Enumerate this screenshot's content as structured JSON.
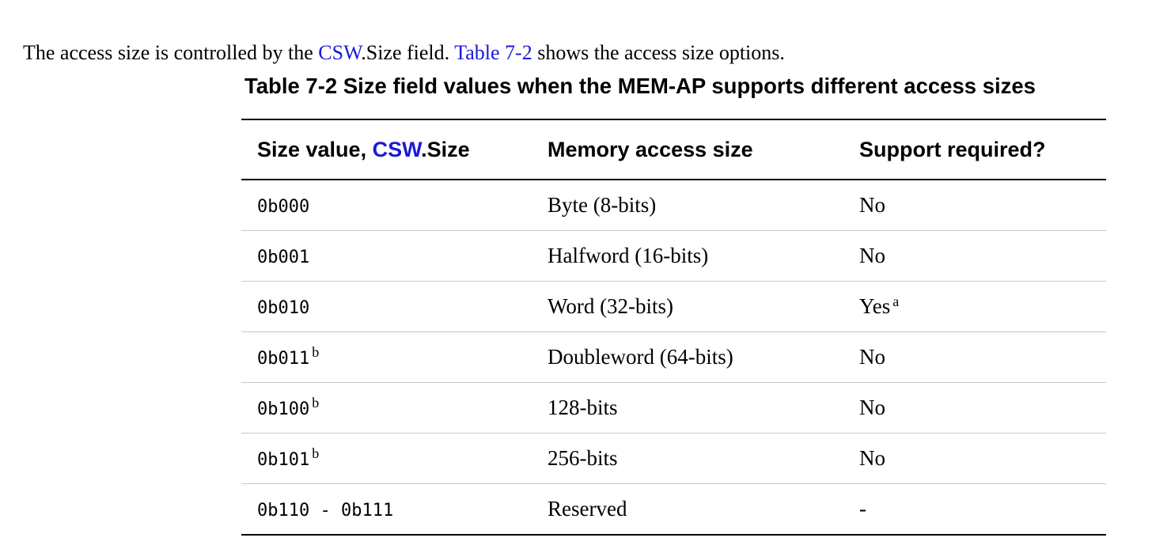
{
  "intro": {
    "text_before": "The access size is controlled by the ",
    "csw_link": "CSW",
    "text_middle": ".Size field. ",
    "table_link": "Table 7-2",
    "text_after": " shows the access size options."
  },
  "table": {
    "caption": "Table 7-2 Size field values when the MEM-AP supports different access sizes",
    "headers": {
      "size_prefix": "Size value, ",
      "size_link": "CSW",
      "size_suffix": ".Size",
      "memory": "Memory access size",
      "support": "Support required?"
    },
    "rows": [
      {
        "value": "0b000",
        "value_note": "",
        "size": "Byte (8-bits)",
        "support": "No",
        "support_note": ""
      },
      {
        "value": "0b001",
        "value_note": "",
        "size": "Halfword (16-bits)",
        "support": "No",
        "support_note": ""
      },
      {
        "value": "0b010",
        "value_note": "",
        "size": "Word (32-bits)",
        "support": "Yes",
        "support_note": "a"
      },
      {
        "value": "0b011",
        "value_note": "b",
        "size": "Doubleword (64-bits)",
        "support": "No",
        "support_note": ""
      },
      {
        "value": "0b100",
        "value_note": "b",
        "size": "128-bits",
        "support": "No",
        "support_note": ""
      },
      {
        "value": "0b101",
        "value_note": "b",
        "size": "256-bits",
        "support": "No",
        "support_note": ""
      },
      {
        "value": "0b110 - 0b111",
        "value_note": "",
        "size": "Reserved",
        "support": "-",
        "support_note": ""
      }
    ]
  },
  "colors": {
    "link": "#1a1ad6",
    "row_divider": "#c8c8c8",
    "rule": "#000000"
  }
}
